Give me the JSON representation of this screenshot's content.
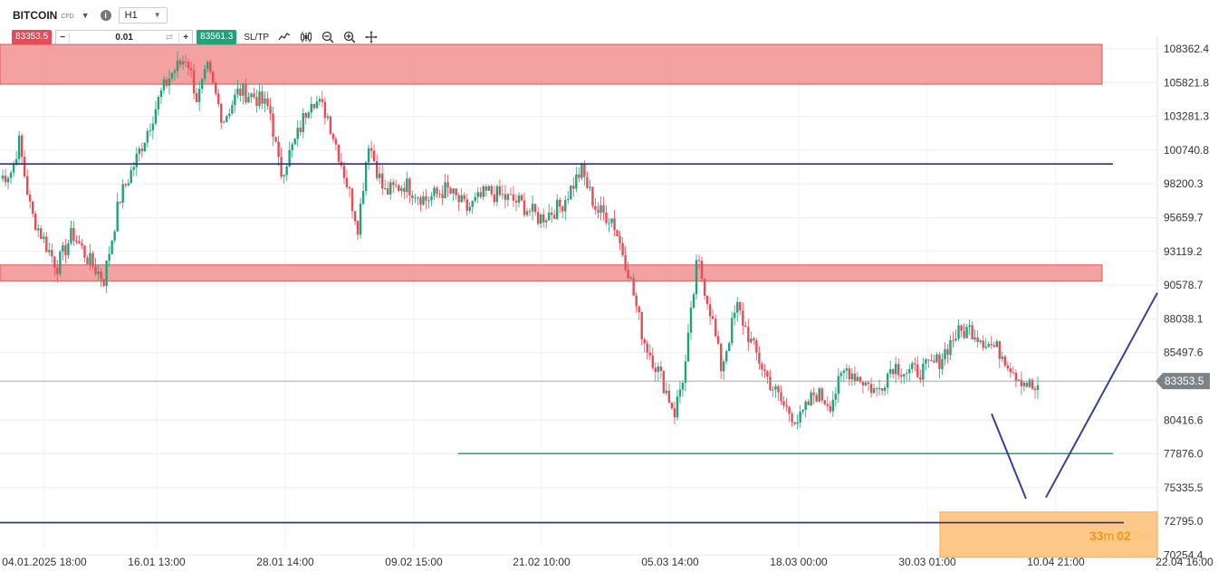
{
  "header": {
    "symbol": "BITCOIN",
    "instrument_type": "CFD",
    "timeframe": "H1",
    "sell_price": "83353.5",
    "quantity": "0.01",
    "buy_price": "83561.3",
    "sltp_label": "SL/TP"
  },
  "colors": {
    "resistance_zone": "#f08a8a",
    "support_zone": "#fbbf74",
    "level_line": "#2b2f7e",
    "green_line": "#1fa37a",
    "up_candle": "#1fa37a",
    "down_candle": "#e84b55",
    "price_marker": "#7d8289"
  },
  "chart_data": {
    "type": "candlestick",
    "y_ticks": [
      "108362.4",
      "105821.8",
      "103281.3",
      "100740.8",
      "98200.3",
      "95659.7",
      "93119.2",
      "90578.7",
      "88038.1",
      "85497.6",
      "80416.6",
      "77876.0",
      "75335.5",
      "72795.0",
      "70254.4"
    ],
    "x_ticks": [
      "04.01.2025 18:00",
      "16.01 13:00",
      "28.01 14:00",
      "09.02 15:00",
      "21.02 10:00",
      "05.03 14:00",
      "18.03 00:00",
      "30.03 01:00",
      "10.04 21:00",
      "22.04 16:00"
    ],
    "current_price": "83353.5",
    "countdown": {
      "minutes": "33",
      "min_unit": "m",
      "seconds": "02",
      "sec_unit": "Sek"
    },
    "zones": [
      {
        "name": "resistance-zone-top",
        "from": 105700,
        "to": 108700,
        "x_start": "04.01.2025 18:00",
        "x_end": "22.04 16:00"
      },
      {
        "name": "resistance-zone-middle",
        "from": 90900,
        "to": 92100,
        "x_start": "04.01.2025 18:00",
        "x_end": "22.04 16:00"
      },
      {
        "name": "support-zone",
        "from": 70100,
        "to": 73500,
        "x_start": "10.04 21:00",
        "x_end": "22.04 16:00"
      }
    ],
    "horizontal_lines": [
      {
        "name": "level-line-99700",
        "price": 99700
      },
      {
        "name": "level-line-72700",
        "price": 72700
      },
      {
        "name": "green-support-line",
        "price": 77900
      }
    ],
    "candles_close_path": [
      [
        0,
        98600
      ],
      [
        0.012,
        99200
      ],
      [
        0.018,
        101500
      ],
      [
        0.03,
        96000
      ],
      [
        0.045,
        93500
      ],
      [
        0.055,
        92000
      ],
      [
        0.07,
        94500
      ],
      [
        0.085,
        92500
      ],
      [
        0.1,
        91000
      ],
      [
        0.115,
        97000
      ],
      [
        0.13,
        99800
      ],
      [
        0.14,
        101800
      ],
      [
        0.155,
        105000
      ],
      [
        0.165,
        106500
      ],
      [
        0.18,
        107800
      ],
      [
        0.19,
        104500
      ],
      [
        0.2,
        106800
      ],
      [
        0.215,
        103000
      ],
      [
        0.23,
        105200
      ],
      [
        0.245,
        104800
      ],
      [
        0.26,
        103800
      ],
      [
        0.27,
        98900
      ],
      [
        0.285,
        101500
      ],
      [
        0.3,
        104800
      ],
      [
        0.315,
        103500
      ],
      [
        0.33,
        99500
      ],
      [
        0.345,
        95000
      ],
      [
        0.355,
        101500
      ],
      [
        0.37,
        97500
      ],
      [
        0.39,
        98200
      ],
      [
        0.41,
        97000
      ],
      [
        0.43,
        97800
      ],
      [
        0.45,
        96300
      ],
      [
        0.47,
        97600
      ],
      [
        0.5,
        96800
      ],
      [
        0.52,
        95600
      ],
      [
        0.54,
        96500
      ],
      [
        0.56,
        99200
      ],
      [
        0.575,
        96200
      ],
      [
        0.59,
        95600
      ],
      [
        0.605,
        91800
      ],
      [
        0.62,
        86500
      ],
      [
        0.635,
        84000
      ],
      [
        0.65,
        81000
      ],
      [
        0.66,
        84300
      ],
      [
        0.672,
        92500
      ],
      [
        0.685,
        88500
      ],
      [
        0.695,
        84300
      ],
      [
        0.71,
        89000
      ],
      [
        0.725,
        86000
      ],
      [
        0.74,
        83500
      ],
      [
        0.755,
        81500
      ],
      [
        0.77,
        80300
      ],
      [
        0.785,
        82500
      ],
      [
        0.8,
        81700
      ],
      [
        0.815,
        84300
      ],
      [
        0.83,
        83500
      ],
      [
        0.845,
        82500
      ],
      [
        0.86,
        84600
      ],
      [
        0.875,
        84000
      ],
      [
        0.89,
        84200
      ],
      [
        0.905,
        84900
      ],
      [
        0.92,
        86800
      ],
      [
        0.935,
        87300
      ],
      [
        0.95,
        86300
      ],
      [
        0.965,
        85500
      ],
      [
        0.98,
        83800
      ],
      [
        1.0,
        82500
      ]
    ],
    "x_end_of_candles": "10.04 21:00",
    "projection": [
      {
        "name": "projection-down",
        "from": {
          "x": "07.04",
          "price": 80900
        },
        "to": {
          "x": "10.04",
          "price": 74500
        }
      },
      {
        "name": "projection-up",
        "from": {
          "x": "11.04",
          "price": 74600
        },
        "to": {
          "x": "22.04 16:00",
          "price": 90000
        }
      }
    ],
    "price_axis": {
      "min": 70254.4,
      "max": 108362.4
    },
    "grid": true
  }
}
